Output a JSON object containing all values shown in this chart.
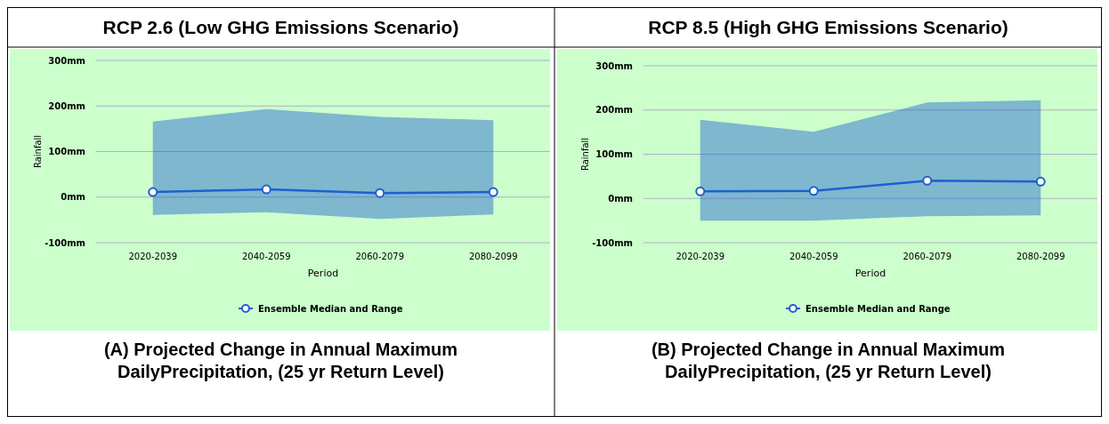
{
  "chart_data": [
    {
      "type": "line",
      "title": "RCP 2.6 (Low GHG Emissions Scenario)",
      "xlabel": "Period",
      "ylabel": "Rainfall",
      "categories": [
        "2020-2039",
        "2040-2059",
        "2060-2079",
        "2080-2099"
      ],
      "series": [
        {
          "name": "Ensemble Median and Range",
          "color": "#1f5fd0",
          "values": [
            11,
            17,
            9,
            11
          ],
          "lower": [
            -39,
            -33,
            -48,
            -38
          ],
          "upper": [
            166,
            193,
            176,
            169
          ]
        }
      ],
      "ylim": [
        -100,
        300
      ],
      "yticks": [
        {
          "value": -100,
          "label": "-100mm"
        },
        {
          "value": 0,
          "label": "0mm"
        },
        {
          "value": 100,
          "label": "100mm"
        },
        {
          "value": 200,
          "label": "200mm"
        },
        {
          "value": 300,
          "label": "300mm"
        }
      ],
      "grid": "y",
      "legend": "bottom",
      "marker": "circle",
      "line_style": "solid",
      "annotations": [
        "(A) Projected Change in Annual Maximum DailyPrecipitation, (25 yr Return Level)"
      ]
    },
    {
      "type": "line",
      "title": "RCP 8.5 (High GHG Emissions Scenario)",
      "xlabel": "Period",
      "ylabel": "Rainfall",
      "categories": [
        "2020-2039",
        "2040-2059",
        "2060-2079",
        "2080-2099"
      ],
      "series": [
        {
          "name": "Ensemble Median and Range",
          "color": "#1f5fd0",
          "values": [
            16,
            17,
            40,
            38
          ],
          "lower": [
            -50,
            -50,
            -40,
            -38
          ],
          "upper": [
            178,
            151,
            217,
            222
          ]
        }
      ],
      "ylim": [
        -100,
        300
      ],
      "yticks": [
        {
          "value": -100,
          "label": "-100mm"
        },
        {
          "value": 0,
          "label": "0mm"
        },
        {
          "value": 100,
          "label": "100mm"
        },
        {
          "value": 200,
          "label": "200mm"
        },
        {
          "value": 300,
          "label": "300mm"
        }
      ],
      "grid": "y",
      "legend": "bottom",
      "marker": "circle",
      "line_style": "solid",
      "annotations": [
        "(B) Projected Change in Annual Maximum DailyPrecipitation, (25 yr Return Level)"
      ]
    }
  ]
}
